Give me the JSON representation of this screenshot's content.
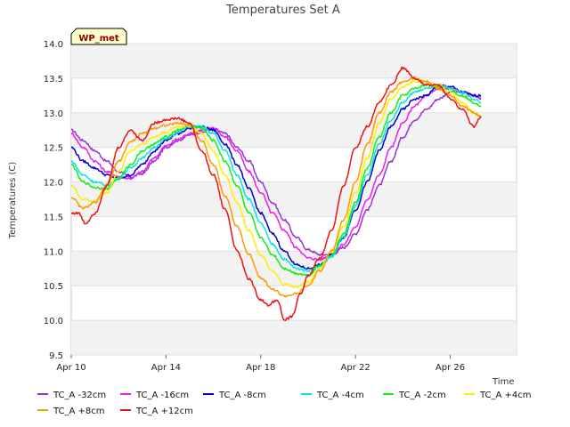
{
  "chart_data": {
    "type": "line",
    "title": "Temperatures Set A",
    "xlabel": "Time",
    "ylabel": "Temperatures (C)",
    "badge": "WP_met",
    "ylim": [
      9.5,
      14.0
    ],
    "yticks": [
      "9.5",
      "10.0",
      "10.5",
      "11.0",
      "11.5",
      "12.0",
      "12.5",
      "13.0",
      "13.5",
      "14.0"
    ],
    "xlim": [
      "Apr 10",
      "Apr 28.8"
    ],
    "xticks": [
      {
        "label": "Apr 10",
        "day": 0
      },
      {
        "label": "Apr 14",
        "day": 4
      },
      {
        "label": "Apr 18",
        "day": 8
      },
      {
        "label": "Apr 22",
        "day": 12
      },
      {
        "label": "Apr 26",
        "day": 16
      }
    ],
    "grid": "horizontal bands",
    "legend_position": "bottom",
    "series": [
      {
        "name": "TC_A -32cm",
        "color": "#9b30d9",
        "points": [
          [
            0,
            12.75
          ],
          [
            0.5,
            12.6
          ],
          [
            1.0,
            12.45
          ],
          [
            1.5,
            12.3
          ],
          [
            2.0,
            12.15
          ],
          [
            2.5,
            12.07
          ],
          [
            3.0,
            12.12
          ],
          [
            3.5,
            12.3
          ],
          [
            4.0,
            12.5
          ],
          [
            4.5,
            12.6
          ],
          [
            5.0,
            12.68
          ],
          [
            5.5,
            12.72
          ],
          [
            6.0,
            12.77
          ],
          [
            6.5,
            12.7
          ],
          [
            7.0,
            12.5
          ],
          [
            7.5,
            12.3
          ],
          [
            8.0,
            12.0
          ],
          [
            8.5,
            11.7
          ],
          [
            9.0,
            11.45
          ],
          [
            9.5,
            11.2
          ],
          [
            10.0,
            11.02
          ],
          [
            10.5,
            10.95
          ],
          [
            11.0,
            10.95
          ],
          [
            11.5,
            11.05
          ],
          [
            12.0,
            11.25
          ],
          [
            12.5,
            11.6
          ],
          [
            13.0,
            11.95
          ],
          [
            13.5,
            12.3
          ],
          [
            14.0,
            12.65
          ],
          [
            14.5,
            12.9
          ],
          [
            15.0,
            13.05
          ],
          [
            15.5,
            13.2
          ],
          [
            16.0,
            13.3
          ],
          [
            16.5,
            13.3
          ],
          [
            17.0,
            13.25
          ],
          [
            17.3,
            13.2
          ]
        ]
      },
      {
        "name": "TC_A -16cm",
        "color": "#ee1bee",
        "points": [
          [
            0,
            12.7
          ],
          [
            0.5,
            12.5
          ],
          [
            1.0,
            12.3
          ],
          [
            1.5,
            12.15
          ],
          [
            2.0,
            12.08
          ],
          [
            2.5,
            12.05
          ],
          [
            3.0,
            12.15
          ],
          [
            3.5,
            12.35
          ],
          [
            4.0,
            12.52
          ],
          [
            4.5,
            12.62
          ],
          [
            5.0,
            12.7
          ],
          [
            5.5,
            12.75
          ],
          [
            6.0,
            12.78
          ],
          [
            6.5,
            12.65
          ],
          [
            7.0,
            12.45
          ],
          [
            7.5,
            12.15
          ],
          [
            8.0,
            11.85
          ],
          [
            8.5,
            11.55
          ],
          [
            9.0,
            11.3
          ],
          [
            9.5,
            11.05
          ],
          [
            10.0,
            10.9
          ],
          [
            10.5,
            10.88
          ],
          [
            11.0,
            10.95
          ],
          [
            11.5,
            11.1
          ],
          [
            12.0,
            11.35
          ],
          [
            12.5,
            11.75
          ],
          [
            13.0,
            12.1
          ],
          [
            13.5,
            12.5
          ],
          [
            14.0,
            12.85
          ],
          [
            14.5,
            13.1
          ],
          [
            15.0,
            13.25
          ],
          [
            15.5,
            13.35
          ],
          [
            16.0,
            13.35
          ],
          [
            16.5,
            13.3
          ],
          [
            17.0,
            13.25
          ],
          [
            17.3,
            13.22
          ]
        ]
      },
      {
        "name": "TC_A -8cm",
        "color": "#0000cc",
        "points": [
          [
            0,
            12.5
          ],
          [
            0.5,
            12.3
          ],
          [
            1.0,
            12.2
          ],
          [
            1.5,
            12.1
          ],
          [
            2.0,
            12.05
          ],
          [
            2.5,
            12.1
          ],
          [
            3.0,
            12.25
          ],
          [
            3.5,
            12.45
          ],
          [
            4.0,
            12.6
          ],
          [
            4.5,
            12.7
          ],
          [
            5.0,
            12.78
          ],
          [
            5.5,
            12.8
          ],
          [
            6.0,
            12.75
          ],
          [
            6.5,
            12.55
          ],
          [
            7.0,
            12.25
          ],
          [
            7.5,
            11.9
          ],
          [
            8.0,
            11.55
          ],
          [
            8.5,
            11.25
          ],
          [
            9.0,
            11.0
          ],
          [
            9.5,
            10.8
          ],
          [
            10.0,
            10.75
          ],
          [
            10.5,
            10.8
          ],
          [
            11.0,
            10.95
          ],
          [
            11.5,
            11.2
          ],
          [
            12.0,
            11.6
          ],
          [
            12.5,
            12.0
          ],
          [
            13.0,
            12.45
          ],
          [
            13.5,
            12.8
          ],
          [
            14.0,
            13.05
          ],
          [
            14.5,
            13.2
          ],
          [
            15.0,
            13.25
          ],
          [
            15.5,
            13.4
          ],
          [
            16.0,
            13.38
          ],
          [
            16.5,
            13.3
          ],
          [
            17.0,
            13.25
          ],
          [
            17.3,
            13.25
          ]
        ]
      },
      {
        "name": "TC_A -4cm",
        "color": "#00e5e5",
        "points": [
          [
            0,
            12.3
          ],
          [
            0.5,
            12.1
          ],
          [
            1.0,
            12.0
          ],
          [
            1.5,
            11.95
          ],
          [
            2.0,
            12.05
          ],
          [
            2.5,
            12.2
          ],
          [
            3.0,
            12.35
          ],
          [
            3.5,
            12.5
          ],
          [
            4.0,
            12.62
          ],
          [
            4.5,
            12.72
          ],
          [
            5.0,
            12.8
          ],
          [
            5.5,
            12.8
          ],
          [
            6.0,
            12.7
          ],
          [
            6.5,
            12.45
          ],
          [
            7.0,
            12.1
          ],
          [
            7.5,
            11.75
          ],
          [
            8.0,
            11.4
          ],
          [
            8.5,
            11.1
          ],
          [
            9.0,
            10.88
          ],
          [
            9.5,
            10.75
          ],
          [
            10.0,
            10.72
          ],
          [
            10.5,
            10.78
          ],
          [
            11.0,
            10.92
          ],
          [
            11.5,
            11.2
          ],
          [
            12.0,
            11.65
          ],
          [
            12.5,
            12.1
          ],
          [
            13.0,
            12.55
          ],
          [
            13.5,
            12.9
          ],
          [
            14.0,
            13.15
          ],
          [
            14.5,
            13.3
          ],
          [
            15.0,
            13.35
          ],
          [
            15.5,
            13.4
          ],
          [
            16.0,
            13.35
          ],
          [
            16.5,
            13.3
          ],
          [
            17.0,
            13.2
          ],
          [
            17.3,
            13.15
          ]
        ]
      },
      {
        "name": "TC_A -2cm",
        "color": "#11ee11",
        "points": [
          [
            0,
            12.25
          ],
          [
            0.5,
            12.0
          ],
          [
            1.0,
            11.92
          ],
          [
            1.5,
            11.9
          ],
          [
            2.0,
            12.05
          ],
          [
            2.5,
            12.25
          ],
          [
            3.0,
            12.45
          ],
          [
            3.5,
            12.55
          ],
          [
            4.0,
            12.65
          ],
          [
            4.5,
            12.75
          ],
          [
            5.0,
            12.82
          ],
          [
            5.5,
            12.78
          ],
          [
            6.0,
            12.6
          ],
          [
            6.5,
            12.3
          ],
          [
            7.0,
            11.95
          ],
          [
            7.5,
            11.55
          ],
          [
            8.0,
            11.2
          ],
          [
            8.5,
            10.95
          ],
          [
            9.0,
            10.75
          ],
          [
            9.5,
            10.68
          ],
          [
            10.0,
            10.65
          ],
          [
            10.5,
            10.8
          ],
          [
            11.0,
            10.95
          ],
          [
            11.5,
            11.25
          ],
          [
            12.0,
            11.7
          ],
          [
            12.5,
            12.2
          ],
          [
            13.0,
            12.65
          ],
          [
            13.5,
            13.0
          ],
          [
            14.0,
            13.25
          ],
          [
            14.5,
            13.35
          ],
          [
            15.0,
            13.4
          ],
          [
            15.5,
            13.38
          ],
          [
            16.0,
            13.32
          ],
          [
            16.5,
            13.25
          ],
          [
            17.0,
            13.15
          ],
          [
            17.3,
            13.1
          ]
        ]
      },
      {
        "name": "TC_A +4cm",
        "color": "#ffee00",
        "points": [
          [
            0,
            11.95
          ],
          [
            0.5,
            11.75
          ],
          [
            1.0,
            11.72
          ],
          [
            1.5,
            11.85
          ],
          [
            2.0,
            12.15
          ],
          [
            2.5,
            12.45
          ],
          [
            3.0,
            12.55
          ],
          [
            3.5,
            12.65
          ],
          [
            4.0,
            12.72
          ],
          [
            4.5,
            12.8
          ],
          [
            5.0,
            12.82
          ],
          [
            5.5,
            12.7
          ],
          [
            6.0,
            12.45
          ],
          [
            6.5,
            12.1
          ],
          [
            7.0,
            11.7
          ],
          [
            7.5,
            11.3
          ],
          [
            8.0,
            10.95
          ],
          [
            8.5,
            10.7
          ],
          [
            9.0,
            10.52
          ],
          [
            9.5,
            10.48
          ],
          [
            10.0,
            10.55
          ],
          [
            10.5,
            10.75
          ],
          [
            11.0,
            11.0
          ],
          [
            11.5,
            11.35
          ],
          [
            12.0,
            11.85
          ],
          [
            12.5,
            12.35
          ],
          [
            13.0,
            12.85
          ],
          [
            13.5,
            13.2
          ],
          [
            14.0,
            13.38
          ],
          [
            14.5,
            13.45
          ],
          [
            15.0,
            13.45
          ],
          [
            15.5,
            13.4
          ],
          [
            16.0,
            13.3
          ],
          [
            16.5,
            13.15
          ],
          [
            17.0,
            13.0
          ],
          [
            17.3,
            12.95
          ]
        ]
      },
      {
        "name": "TC_A +8cm",
        "color": "#ff9900",
        "points": [
          [
            0,
            11.78
          ],
          [
            0.5,
            11.62
          ],
          [
            1.0,
            11.7
          ],
          [
            1.5,
            11.95
          ],
          [
            2.0,
            12.3
          ],
          [
            2.5,
            12.58
          ],
          [
            3.0,
            12.7
          ],
          [
            3.5,
            12.78
          ],
          [
            4.0,
            12.82
          ],
          [
            4.5,
            12.85
          ],
          [
            5.0,
            12.82
          ],
          [
            5.5,
            12.6
          ],
          [
            6.0,
            12.25
          ],
          [
            6.5,
            11.8
          ],
          [
            7.0,
            11.35
          ],
          [
            7.5,
            10.95
          ],
          [
            8.0,
            10.62
          ],
          [
            8.5,
            10.45
          ],
          [
            9.0,
            10.35
          ],
          [
            9.5,
            10.38
          ],
          [
            10.0,
            10.5
          ],
          [
            10.5,
            10.72
          ],
          [
            11.0,
            11.0
          ],
          [
            11.5,
            11.45
          ],
          [
            12.0,
            12.0
          ],
          [
            12.5,
            12.55
          ],
          [
            13.0,
            13.0
          ],
          [
            13.5,
            13.3
          ],
          [
            14.0,
            13.45
          ],
          [
            14.5,
            13.5
          ],
          [
            15.0,
            13.45
          ],
          [
            15.5,
            13.35
          ],
          [
            16.0,
            13.25
          ],
          [
            16.5,
            13.1
          ],
          [
            17.0,
            13.0
          ],
          [
            17.3,
            12.95
          ]
        ]
      },
      {
        "name": "TC_A +12cm",
        "color": "#ee1111",
        "points": [
          [
            0,
            11.55
          ],
          [
            0.3,
            11.55
          ],
          [
            0.6,
            11.4
          ],
          [
            1.0,
            11.55
          ],
          [
            1.5,
            11.95
          ],
          [
            2.0,
            12.5
          ],
          [
            2.5,
            12.75
          ],
          [
            3.0,
            12.6
          ],
          [
            3.5,
            12.85
          ],
          [
            4.0,
            12.9
          ],
          [
            4.5,
            12.92
          ],
          [
            5.0,
            12.85
          ],
          [
            5.5,
            12.45
          ],
          [
            6.0,
            12.1
          ],
          [
            6.5,
            11.6
          ],
          [
            7.0,
            11.0
          ],
          [
            7.5,
            10.6
          ],
          [
            8.0,
            10.3
          ],
          [
            8.3,
            10.22
          ],
          [
            8.7,
            10.3
          ],
          [
            9.0,
            10.0
          ],
          [
            9.3,
            10.05
          ],
          [
            9.7,
            10.4
          ],
          [
            10.0,
            10.65
          ],
          [
            10.5,
            10.9
          ],
          [
            11.0,
            11.3
          ],
          [
            11.5,
            11.95
          ],
          [
            12.0,
            12.5
          ],
          [
            12.5,
            12.8
          ],
          [
            13.0,
            13.15
          ],
          [
            13.5,
            13.4
          ],
          [
            14.0,
            13.65
          ],
          [
            14.5,
            13.5
          ],
          [
            15.0,
            13.4
          ],
          [
            15.5,
            13.4
          ],
          [
            16.0,
            13.2
          ],
          [
            16.5,
            13.05
          ],
          [
            17.0,
            12.8
          ],
          [
            17.3,
            12.95
          ]
        ]
      }
    ]
  }
}
